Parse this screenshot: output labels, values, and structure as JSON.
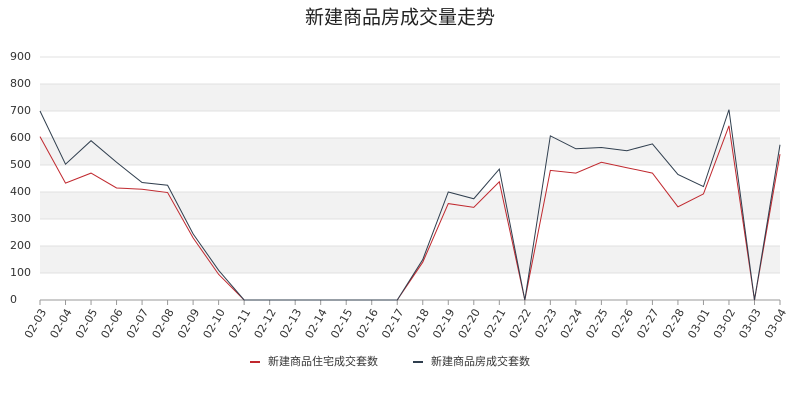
{
  "chart_data": {
    "type": "line",
    "title": "新建商品房成交量走势",
    "categories": [
      "02-03",
      "02-04",
      "02-05",
      "02-06",
      "02-07",
      "02-08",
      "02-09",
      "02-10",
      "02-11",
      "02-12",
      "02-13",
      "02-14",
      "02-15",
      "02-16",
      "02-17",
      "02-18",
      "02-19",
      "02-20",
      "02-21",
      "02-22",
      "02-23",
      "02-24",
      "02-25",
      "02-26",
      "02-27",
      "02-28",
      "03-01",
      "03-02",
      "03-03",
      "03-04"
    ],
    "series": [
      {
        "name": "新建商品住宅成交套数",
        "color": "#c0282e",
        "values": [
          605,
          433,
          470,
          415,
          410,
          398,
          230,
          95,
          0,
          0,
          0,
          0,
          0,
          0,
          0,
          140,
          357,
          343,
          438,
          0,
          480,
          470,
          510,
          490,
          470,
          345,
          393,
          645,
          0,
          540
        ]
      },
      {
        "name": "新建商品房成交套数",
        "color": "#2f3e4e",
        "values": [
          700,
          503,
          590,
          510,
          435,
          425,
          245,
          110,
          0,
          0,
          0,
          0,
          0,
          0,
          0,
          150,
          400,
          375,
          485,
          0,
          608,
          560,
          565,
          553,
          578,
          465,
          420,
          705,
          0,
          575
        ]
      }
    ],
    "ylim": [
      0,
      900
    ],
    "yticks": [
      0,
      100,
      200,
      300,
      400,
      500,
      600,
      700,
      800,
      900
    ],
    "grid": true,
    "legend": "bottom"
  }
}
